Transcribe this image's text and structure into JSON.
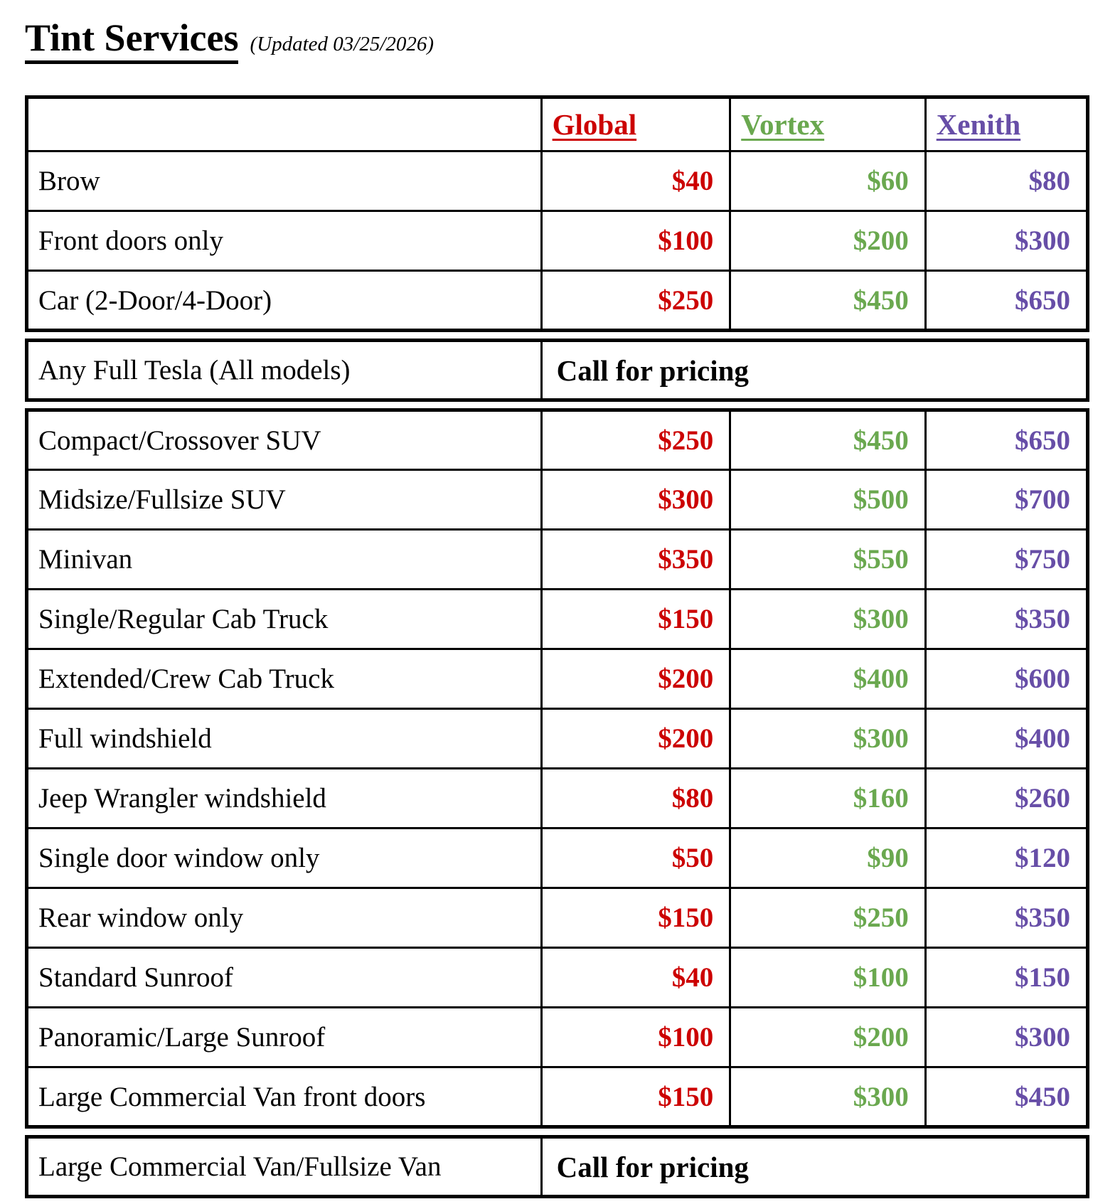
{
  "title": "Tint Services",
  "updated": "(Updated 03/25/2026)",
  "columns": [
    {
      "label": "Global",
      "color": "#CC0000"
    },
    {
      "label": "Vortex",
      "color": "#6AA84F"
    },
    {
      "label": "Xenith",
      "color": "#674EA7"
    }
  ],
  "sections": [
    {
      "rows": [
        {
          "label": "Brow",
          "prices": [
            "$40",
            "$60",
            "$80"
          ]
        },
        {
          "label": "Front doors only",
          "prices": [
            "$100",
            "$200",
            "$300"
          ]
        },
        {
          "label": "Car (2-Door/4-Door)",
          "prices": [
            "$250",
            "$450",
            "$650"
          ]
        }
      ]
    },
    {
      "rows": [
        {
          "label": "Any Full Tesla (All models)",
          "note": "Call for pricing"
        }
      ]
    },
    {
      "rows": [
        {
          "label": "Compact/Crossover SUV",
          "prices": [
            "$250",
            "$450",
            "$650"
          ]
        },
        {
          "label": "Midsize/Fullsize SUV",
          "prices": [
            "$300",
            "$500",
            "$700"
          ]
        },
        {
          "label": "Minivan",
          "prices": [
            "$350",
            "$550",
            "$750"
          ]
        },
        {
          "label": "Single/Regular Cab Truck",
          "prices": [
            "$150",
            "$300",
            "$350"
          ]
        },
        {
          "label": "Extended/Crew Cab Truck",
          "prices": [
            "$200",
            "$400",
            "$600"
          ]
        },
        {
          "label": "Full windshield",
          "prices": [
            "$200",
            "$300",
            "$400"
          ]
        },
        {
          "label": "Jeep Wrangler windshield",
          "prices": [
            "$80",
            "$160",
            "$260"
          ]
        },
        {
          "label": "Single door window only",
          "prices": [
            "$50",
            "$90",
            "$120"
          ]
        },
        {
          "label": "Rear window only",
          "prices": [
            "$150",
            "$250",
            "$350"
          ]
        },
        {
          "label": "Standard Sunroof",
          "prices": [
            "$40",
            "$100",
            "$150"
          ]
        },
        {
          "label": "Panoramic/Large Sunroof",
          "prices": [
            "$100",
            "$200",
            "$300"
          ]
        },
        {
          "label": "Large Commercial Van front doors",
          "prices": [
            "$150",
            "$300",
            "$450"
          ]
        }
      ]
    },
    {
      "rows": [
        {
          "label": "Large Commercial Van/Fullsize Van",
          "note": "Call for pricing"
        }
      ]
    }
  ]
}
